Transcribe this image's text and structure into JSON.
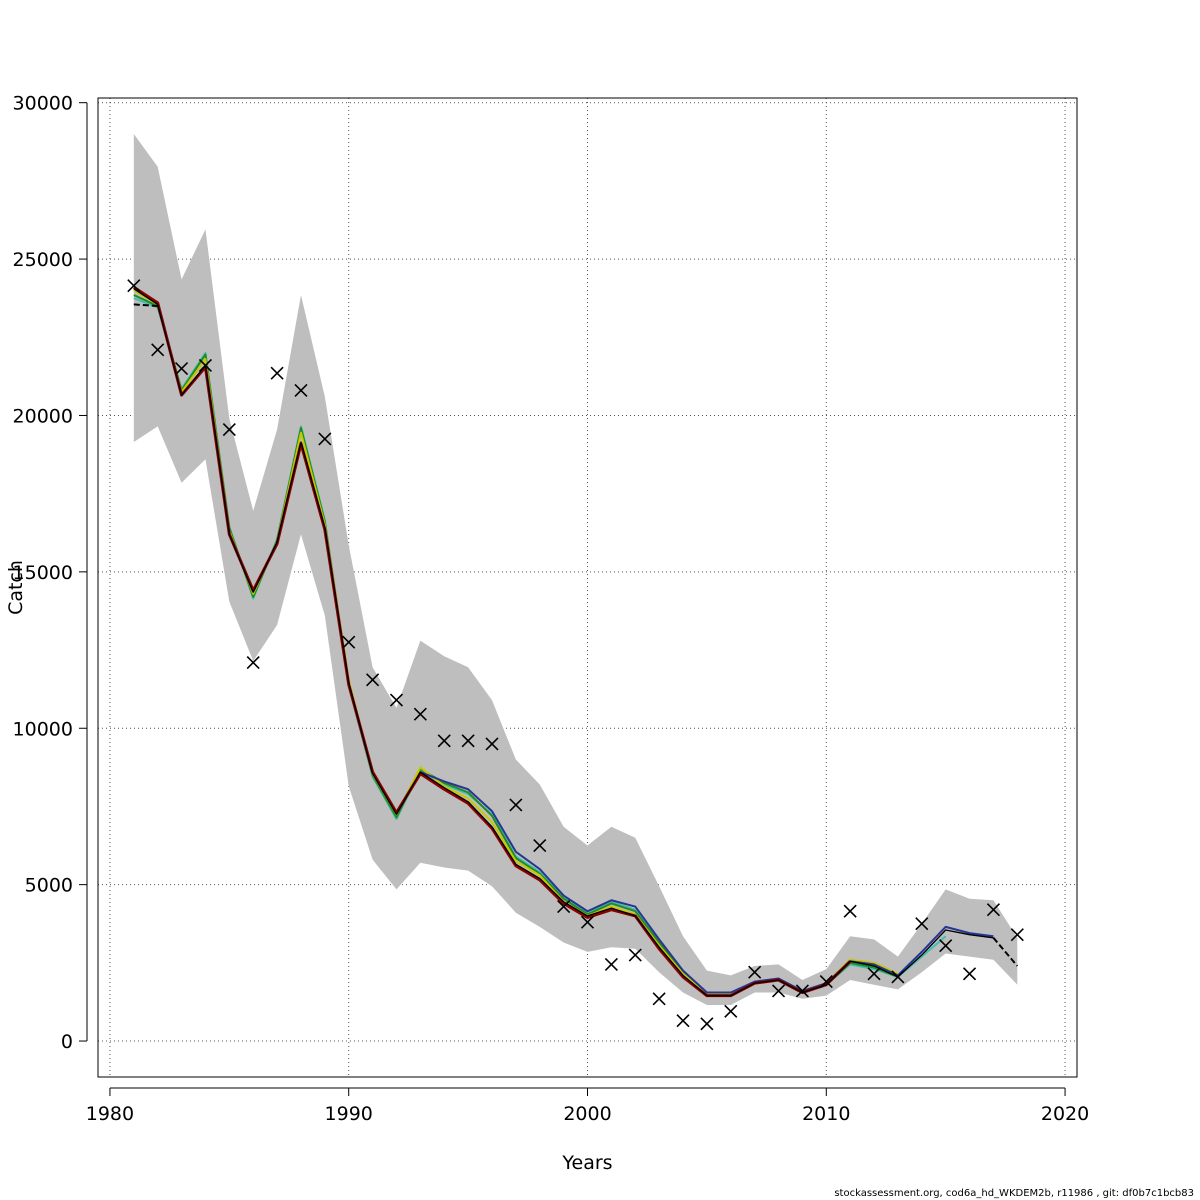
{
  "chart_data": {
    "type": "line",
    "title": "",
    "xlabel": "Years",
    "ylabel": "Catch",
    "xlim": [
      1979.5,
      2020.5
    ],
    "ylim": [
      -1150,
      30150
    ],
    "x_ticks": [
      1980,
      1990,
      2000,
      2010,
      2020
    ],
    "y_ticks": [
      0,
      5000,
      10000,
      15000,
      20000,
      25000,
      30000
    ],
    "x_tick_labels": [
      "1980",
      "1990",
      "2000",
      "2010",
      "2020"
    ],
    "y_tick_labels": [
      "0",
      "5000",
      "10000",
      "15000",
      "20000",
      "25000",
      "30000"
    ],
    "grid": true,
    "legend": "none",
    "footer": "stockassessment.org, cod6a_hd_WKDEM2b, r11986 , git: df0b7c1bcb83",
    "band": {
      "color": "#bebebe",
      "x": [
        1981,
        1982,
        1983,
        1984,
        1985,
        1986,
        1987,
        1988,
        1989,
        1990,
        1991,
        1992,
        1993,
        1994,
        1995,
        1996,
        1997,
        1998,
        1999,
        2000,
        2001,
        2002,
        2003,
        2004,
        2005,
        2006,
        2007,
        2008,
        2009,
        2010,
        2011,
        2012,
        2013,
        2014,
        2015,
        2016,
        2017,
        2018
      ],
      "upper": [
        29000,
        27950,
        24350,
        25950,
        19900,
        16950,
        19550,
        23850,
        20600,
        15850,
        11950,
        10650,
        12800,
        12300,
        11950,
        10900,
        9000,
        8200,
        6850,
        6250,
        6850,
        6500,
        4950,
        3350,
        2250,
        2100,
        2400,
        2450,
        1950,
        2300,
        3350,
        3250,
        2700,
        3750,
        4850,
        4550,
        4500,
        3300
      ],
      "lower": [
        19150,
        19650,
        17850,
        18600,
        14050,
        12150,
        13300,
        16200,
        13600,
        8150,
        5800,
        4850,
        5700,
        5550,
        5450,
        4950,
        4100,
        3650,
        3150,
        2850,
        3000,
        2950,
        2200,
        1550,
        1150,
        1150,
        1550,
        1550,
        1350,
        1450,
        1950,
        1800,
        1650,
        2200,
        2800,
        2700,
        2600,
        1800
      ]
    },
    "x": [
      1981,
      1982,
      1983,
      1984,
      1985,
      1986,
      1987,
      1988,
      1989,
      1990,
      1991,
      1992,
      1993,
      1994,
      1995,
      1996,
      1997,
      1998,
      1999,
      2000,
      2001,
      2002,
      2003,
      2004,
      2005,
      2006,
      2007,
      2008,
      2009,
      2010,
      2011,
      2012,
      2013,
      2014,
      2015,
      2016,
      2017,
      2018
    ],
    "series": [
      {
        "color": "#3fbfb0",
        "width": 2,
        "values": [
          23750,
          23450,
          20850,
          22000,
          16450,
          14150,
          16050,
          19650,
          16650,
          11350,
          8450,
          7100,
          8650,
          8200,
          7900,
          7250,
          5900,
          5400,
          4600,
          4100,
          4450,
          4200,
          3200,
          2250,
          1550,
          1550,
          1850,
          2000,
          1600,
          1800,
          2450,
          2300,
          2050,
          2700,
          3350,
          null,
          null,
          null
        ]
      },
      {
        "color": "#228b22",
        "width": 2,
        "values": [
          23850,
          23500,
          20800,
          21950,
          16400,
          14200,
          16000,
          19600,
          16600,
          11450,
          8500,
          7150,
          8700,
          8250,
          7950,
          7200,
          5850,
          5350,
          4550,
          4050,
          4400,
          4150,
          3150,
          2200,
          1500,
          1500,
          1850,
          1950,
          1550,
          1800,
          2500,
          2350,
          2050,
          null,
          null,
          null,
          null,
          null
        ]
      },
      {
        "color": "#c8c800",
        "width": 2,
        "values": [
          24000,
          23550,
          20750,
          21800,
          16300,
          14300,
          15950,
          19450,
          16500,
          11550,
          8550,
          7250,
          8750,
          8150,
          7750,
          7000,
          5750,
          5300,
          4450,
          4000,
          4300,
          4050,
          3050,
          2150,
          1500,
          1500,
          1850,
          1950,
          1550,
          1850,
          2600,
          2500,
          2150,
          null,
          null,
          null,
          null,
          null
        ]
      },
      {
        "color": "#283593",
        "width": 2,
        "values": [
          null,
          null,
          null,
          null,
          null,
          null,
          null,
          null,
          null,
          null,
          null,
          null,
          8600,
          8300,
          8050,
          7350,
          6050,
          5500,
          4650,
          4150,
          4500,
          4300,
          3250,
          2250,
          1550,
          1550,
          1900,
          2000,
          1600,
          1850,
          2550,
          2450,
          2100,
          2850,
          3650,
          3450,
          3350,
          null
        ]
      },
      {
        "color": "#8b0000",
        "width": 3,
        "values": [
          24100,
          23600,
          20650,
          21550,
          16200,
          14400,
          15900,
          19100,
          16350,
          11400,
          8600,
          7300,
          8550,
          8050,
          7600,
          6800,
          5600,
          5150,
          4400,
          3950,
          4200,
          4000,
          2950,
          2050,
          1450,
          1450,
          1850,
          1950,
          1550,
          1800,
          2550,
          null,
          null,
          null,
          null,
          null,
          null,
          null
        ]
      },
      {
        "color": "#000000",
        "width": 1.3,
        "values": [
          24050,
          23550,
          20650,
          21600,
          16200,
          14350,
          15950,
          19150,
          16400,
          11450,
          8550,
          7250,
          8600,
          8100,
          7650,
          6850,
          5650,
          5200,
          4450,
          4000,
          4250,
          4000,
          3000,
          2100,
          1450,
          1450,
          1850,
          1950,
          1550,
          1800,
          2550,
          2400,
          2050,
          2750,
          3550,
          3400,
          3300,
          null
        ]
      },
      {
        "color": "#000000",
        "width": 2,
        "dash": "6,3",
        "values": [
          23550,
          23500,
          null,
          null,
          null,
          null,
          null,
          null,
          null,
          null,
          null,
          null,
          null,
          null,
          null,
          null,
          null,
          null,
          null,
          null,
          null,
          null,
          null,
          null,
          null,
          null,
          null,
          null,
          null,
          null,
          null,
          null,
          null,
          null,
          null,
          null,
          3300,
          2400
        ]
      }
    ],
    "observed": {
      "marker": "x",
      "color": "#000000",
      "x": [
        1981,
        1982,
        1983,
        1984,
        1985,
        1986,
        1987,
        1988,
        1989,
        1990,
        1991,
        1992,
        1993,
        1994,
        1995,
        1996,
        1997,
        1998,
        1999,
        2000,
        2001,
        2002,
        2003,
        2004,
        2005,
        2006,
        2007,
        2008,
        2009,
        2010,
        2011,
        2012,
        2013,
        2014,
        2015,
        2016,
        2017,
        2018
      ],
      "y": [
        24150,
        22100,
        21500,
        21600,
        19550,
        12100,
        21350,
        20800,
        19250,
        12750,
        11550,
        10900,
        10450,
        9600,
        9600,
        9500,
        7550,
        6250,
        4300,
        3800,
        2450,
        2750,
        1350,
        650,
        550,
        950,
        2200,
        1600,
        1600,
        1900,
        4150,
        2150,
        2050,
        3750,
        3050,
        2150,
        4200,
        3400
      ]
    }
  }
}
